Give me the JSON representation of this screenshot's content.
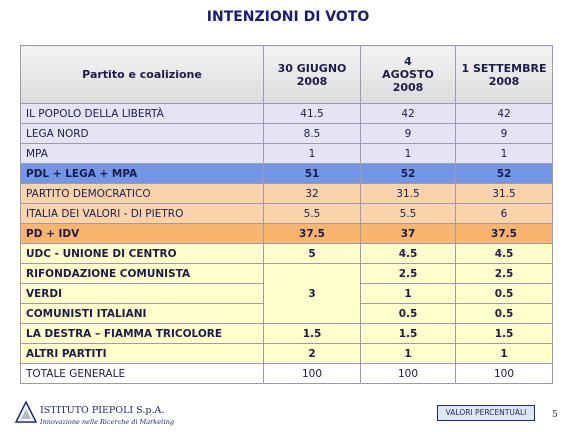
{
  "title": "INTENZIONI DI VOTO",
  "table": {
    "header": {
      "label": "Partito e coalizione",
      "columns": [
        [
          "30 GIUGNO",
          "2008"
        ],
        [
          "4",
          "AGOSTO",
          "2008"
        ],
        [
          "1 SETTEMBRE",
          "2008"
        ]
      ]
    },
    "rows": [
      {
        "label": "IL POPOLO DELLA LIBERTÀ",
        "values": [
          41.5,
          42,
          42
        ],
        "fill": "#e4e4f4",
        "bold": false
      },
      {
        "label": "LEGA NORD",
        "values": [
          8.5,
          9,
          9
        ],
        "fill": "#e4e4f4",
        "bold": false
      },
      {
        "label": "MPA",
        "values": [
          1,
          1,
          1
        ],
        "fill": "#e4e4f4",
        "bold": false
      },
      {
        "label": "PDL + LEGA + MPA",
        "values": [
          51,
          52,
          52
        ],
        "fill": "#7396e6",
        "bold": true
      },
      {
        "label": "PARTITO DEMOCRATICO",
        "values": [
          32,
          31.5,
          31.5
        ],
        "fill": "#fcd4ac",
        "bold": false
      },
      {
        "label": "ITALIA DEI VALORI - DI PIETRO",
        "values": [
          5.5,
          5.5,
          6
        ],
        "fill": "#fcd4ac",
        "bold": false
      },
      {
        "label": "PD + IDV",
        "values": [
          37.5,
          37,
          37.5
        ],
        "fill": "#f9b56e",
        "bold": true
      },
      {
        "label": "UDC - UNIONE DI CENTRO",
        "values": [
          5,
          4.5,
          4.5
        ],
        "fill": "#ffffcc",
        "bold": true
      },
      {
        "label": "RIFONDAZIONE COMUNISTA",
        "values": [
          3,
          2.5,
          2.5
        ],
        "span": 3,
        "fill": "#ffffcc",
        "bold": true
      },
      {
        "label": "VERDI",
        "values": [
          1,
          0.5
        ],
        "fill": "#ffffcc",
        "bold": true
      },
      {
        "label": "COMUNISTI ITALIANI",
        "values": [
          0.5,
          0.5
        ],
        "fill": "#ffffcc",
        "bold": true
      },
      {
        "label": "LA DESTRA – FIAMMA TRICOLORE",
        "values": [
          1.5,
          1.5,
          1.5
        ],
        "fill": "#ffffcc",
        "bold": true
      },
      {
        "label": "ALTRI PARTITI",
        "values": [
          2,
          1,
          1
        ],
        "fill": "#ffffcc",
        "bold": true
      },
      {
        "label": "TOTALE GENERALE",
        "values": [
          100,
          100,
          100
        ],
        "fill": "#ffffff",
        "bold": false
      }
    ]
  },
  "footer": {
    "company": "ISTITUTO PIEPOLI S.p.A.",
    "tagline": "Innovazione nelle Ricerche di Marketing",
    "note": "VALORI PERCENTUALI",
    "page": "5"
  }
}
